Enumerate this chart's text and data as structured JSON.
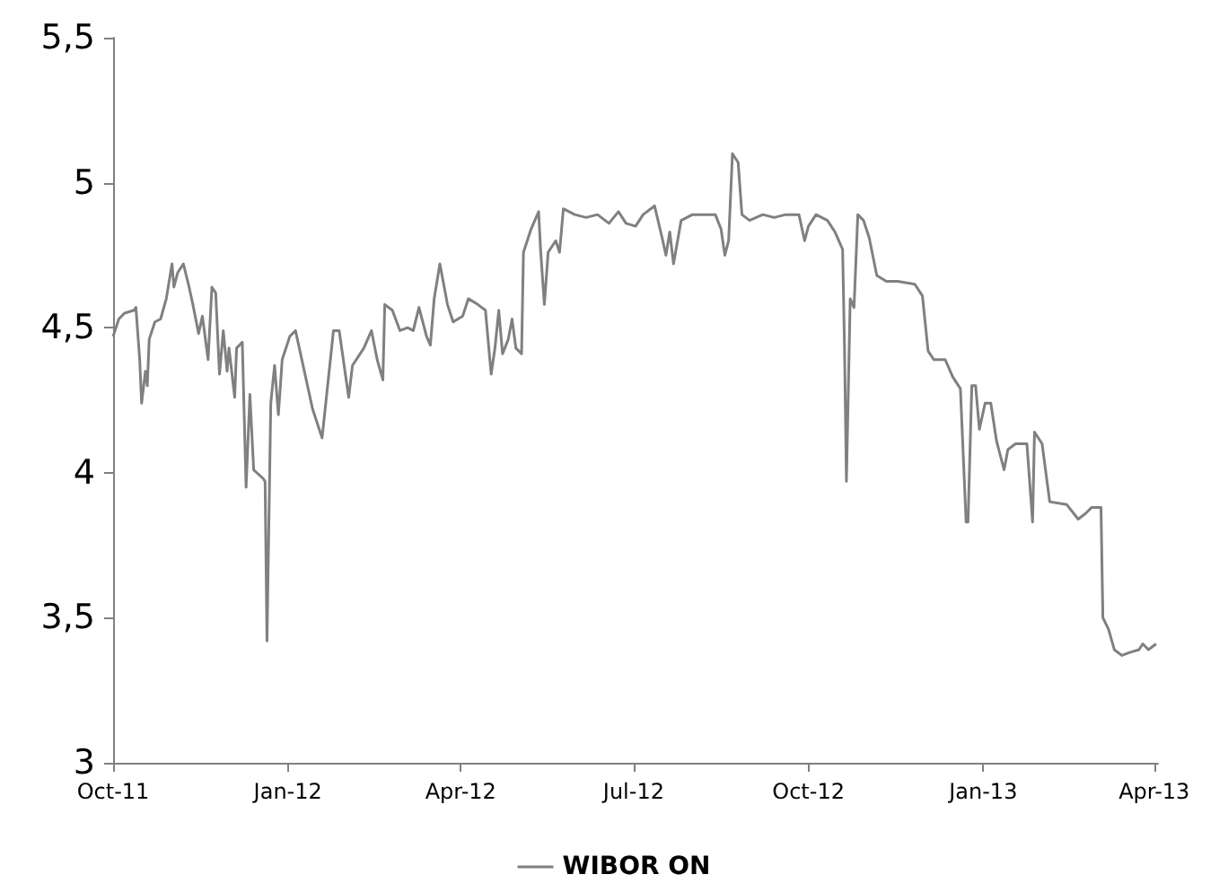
{
  "chart_data": {
    "type": "line",
    "x": [
      "2011-10-01",
      "2011-10-04",
      "2011-10-07",
      "2011-10-12",
      "2011-10-13",
      "2011-10-15",
      "2011-10-16",
      "2011-10-18",
      "2011-10-19",
      "2011-10-20",
      "2011-10-23",
      "2011-10-26",
      "2011-10-29",
      "2011-11-01",
      "2011-11-02",
      "2011-11-04",
      "2011-11-07",
      "2011-11-10",
      "2011-11-12",
      "2011-11-15",
      "2011-11-17",
      "2011-11-20",
      "2011-11-22",
      "2011-11-24",
      "2011-11-26",
      "2011-11-28",
      "2011-11-30",
      "2011-12-01",
      "2011-12-04",
      "2011-12-05",
      "2011-12-08",
      "2011-12-10",
      "2011-12-12",
      "2011-12-14",
      "2011-12-19",
      "2011-12-20",
      "2011-12-21",
      "2011-12-23",
      "2011-12-25",
      "2011-12-27",
      "2011-12-29",
      "2012-01-02",
      "2012-01-05",
      "2012-01-10",
      "2012-01-14",
      "2012-01-19",
      "2012-01-25",
      "2012-01-28",
      "2012-02-02",
      "2012-02-04",
      "2012-02-10",
      "2012-02-14",
      "2012-02-17",
      "2012-02-20",
      "2012-02-21",
      "2012-02-25",
      "2012-02-29",
      "2012-03-04",
      "2012-03-07",
      "2012-03-10",
      "2012-03-14",
      "2012-03-16",
      "2012-03-18",
      "2012-03-21",
      "2012-03-25",
      "2012-03-28",
      "2012-04-02",
      "2012-04-05",
      "2012-04-10",
      "2012-04-14",
      "2012-04-17",
      "2012-04-19",
      "2012-04-21",
      "2012-04-23",
      "2012-04-26",
      "2012-04-28",
      "2012-04-30",
      "2012-05-03",
      "2012-05-04",
      "2012-05-08",
      "2012-05-12",
      "2012-05-13",
      "2012-05-15",
      "2012-05-17",
      "2012-05-21",
      "2012-05-23",
      "2012-05-25",
      "2012-05-31",
      "2012-06-06",
      "2012-06-12",
      "2012-06-18",
      "2012-06-23",
      "2012-06-27",
      "2012-07-02",
      "2012-07-06",
      "2012-07-12",
      "2012-07-16",
      "2012-07-18",
      "2012-07-20",
      "2012-07-22",
      "2012-07-26",
      "2012-08-01",
      "2012-08-13",
      "2012-08-16",
      "2012-08-18",
      "2012-08-20",
      "2012-08-22",
      "2012-08-25",
      "2012-08-27",
      "2012-08-31",
      "2012-09-07",
      "2012-09-13",
      "2012-09-19",
      "2012-09-26",
      "2012-09-29",
      "2012-10-01",
      "2012-10-05",
      "2012-10-11",
      "2012-10-15",
      "2012-10-19",
      "2012-10-20",
      "2012-10-21",
      "2012-10-23",
      "2012-10-25",
      "2012-10-27",
      "2012-10-30",
      "2012-11-02",
      "2012-11-06",
      "2012-11-11",
      "2012-11-17",
      "2012-11-26",
      "2012-11-30",
      "2012-12-03",
      "2012-12-06",
      "2012-12-12",
      "2012-12-16",
      "2012-12-20",
      "2012-12-23",
      "2012-12-24",
      "2012-12-26",
      "2012-12-28",
      "2012-12-30",
      "2013-01-02",
      "2013-01-05",
      "2013-01-08",
      "2013-01-12",
      "2013-01-14",
      "2013-01-18",
      "2013-01-24",
      "2013-01-27",
      "2013-01-28",
      "2013-02-01",
      "2013-02-05",
      "2013-02-14",
      "2013-02-20",
      "2013-02-24",
      "2013-02-27",
      "2013-03-04",
      "2013-03-05",
      "2013-03-08",
      "2013-03-11",
      "2013-03-15",
      "2013-03-19",
      "2013-03-24",
      "2013-03-26",
      "2013-03-29",
      "2013-04-02"
    ],
    "series": [
      {
        "name": "WIBOR ON",
        "color": "#808080",
        "values": [
          4.47,
          4.53,
          4.55,
          4.56,
          4.57,
          4.39,
          4.24,
          4.35,
          4.3,
          4.46,
          4.52,
          4.53,
          4.6,
          4.72,
          4.64,
          4.69,
          4.72,
          4.64,
          4.58,
          4.48,
          4.54,
          4.39,
          4.64,
          4.62,
          4.34,
          4.49,
          4.35,
          4.43,
          4.26,
          4.43,
          4.45,
          3.95,
          4.27,
          4.01,
          3.98,
          3.97,
          3.42,
          4.24,
          4.37,
          4.2,
          4.39,
          4.47,
          4.49,
          4.34,
          4.22,
          4.12,
          4.49,
          4.49,
          4.26,
          4.37,
          4.43,
          4.49,
          4.39,
          4.32,
          4.58,
          4.56,
          4.49,
          4.5,
          4.49,
          4.57,
          4.47,
          4.44,
          4.6,
          4.72,
          4.58,
          4.52,
          4.54,
          4.6,
          4.58,
          4.56,
          4.34,
          4.43,
          4.56,
          4.41,
          4.46,
          4.53,
          4.43,
          4.41,
          4.76,
          4.84,
          4.9,
          4.77,
          4.58,
          4.76,
          4.8,
          4.76,
          4.91,
          4.89,
          4.88,
          4.89,
          4.86,
          4.9,
          4.86,
          4.85,
          4.89,
          4.92,
          4.81,
          4.75,
          4.83,
          4.72,
          4.87,
          4.89,
          4.89,
          4.84,
          4.75,
          4.8,
          5.1,
          5.07,
          4.89,
          4.87,
          4.89,
          4.88,
          4.89,
          4.89,
          4.8,
          4.85,
          4.89,
          4.87,
          4.83,
          4.77,
          4.43,
          3.97,
          4.6,
          4.57,
          4.89,
          4.87,
          4.81,
          4.68,
          4.66,
          4.66,
          4.65,
          4.61,
          4.42,
          4.39,
          4.39,
          4.33,
          4.29,
          3.83,
          3.83,
          4.3,
          4.3,
          4.15,
          4.24,
          4.24,
          4.11,
          4.01,
          4.08,
          4.1,
          4.1,
          3.83,
          4.14,
          4.1,
          3.9,
          3.89,
          3.84,
          3.86,
          3.88,
          3.88,
          3.5,
          3.46,
          3.39,
          3.37,
          3.38,
          3.39,
          3.41,
          3.39,
          3.41
        ]
      }
    ],
    "xlim": [
      "2011-10-01",
      "2013-04-03"
    ],
    "xticks": [
      {
        "value": "2011-10-01",
        "label": "Oct-11"
      },
      {
        "value": "2012-01-01",
        "label": "Jan-12"
      },
      {
        "value": "2012-04-01",
        "label": "Apr-12"
      },
      {
        "value": "2012-07-01",
        "label": "Jul-12"
      },
      {
        "value": "2012-10-01",
        "label": "Oct-12"
      },
      {
        "value": "2013-01-01",
        "label": "Jan-13"
      },
      {
        "value": "2013-04-01",
        "label": "Apr-13"
      }
    ],
    "ylim": [
      3,
      5.5
    ],
    "yticks": [
      3,
      {
        "value": 3.5,
        "label": "3,5"
      },
      4,
      {
        "value": 4.5,
        "label": "4,5"
      },
      5,
      {
        "value": 5.5,
        "label": "5,5"
      }
    ],
    "grid": false,
    "legend": "bottom",
    "marker": "none",
    "line_style": "solid"
  }
}
